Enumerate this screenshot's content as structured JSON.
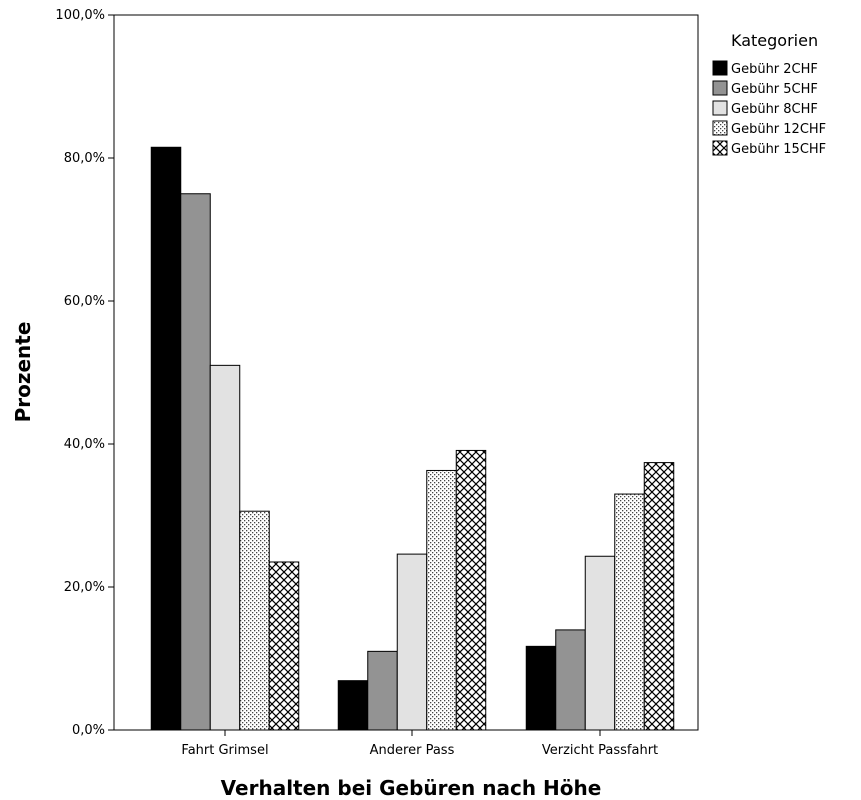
{
  "chart_data": {
    "type": "bar",
    "xlabel": "Verhalten bei Gebüren nach Höhe",
    "ylabel": "Prozente",
    "ylim": [
      0,
      100
    ],
    "yticks": [
      "0,0%",
      "20,0%",
      "40,0%",
      "60,0%",
      "80,0%",
      "100,0%"
    ],
    "ytick_values": [
      0,
      20,
      40,
      60,
      80,
      100
    ],
    "categories": [
      "Fahrt Grimsel",
      "Anderer Pass",
      "Verzicht Passfahrt"
    ],
    "legend_title": "Kategorien",
    "legend_position": "top-right",
    "grid": false,
    "series": [
      {
        "name": "Gebühr 2CHF",
        "values": [
          81.5,
          6.9,
          11.7
        ],
        "fill": "#000000",
        "pattern": "solid"
      },
      {
        "name": "Gebühr 5CHF",
        "values": [
          75.0,
          11.0,
          14.0
        ],
        "fill": "#939393",
        "pattern": "solid"
      },
      {
        "name": "Gebühr 8CHF",
        "values": [
          51.0,
          24.6,
          24.3
        ],
        "fill": "#e2e2e2",
        "pattern": "solid"
      },
      {
        "name": "Gebühr 12CHF",
        "values": [
          30.6,
          36.3,
          33.0
        ],
        "fill": "#ffffff",
        "pattern": "dots"
      },
      {
        "name": "Gebühr 15CHF",
        "values": [
          23.5,
          39.1,
          37.4
        ],
        "fill": "#ffffff",
        "pattern": "crosshatch"
      }
    ]
  }
}
